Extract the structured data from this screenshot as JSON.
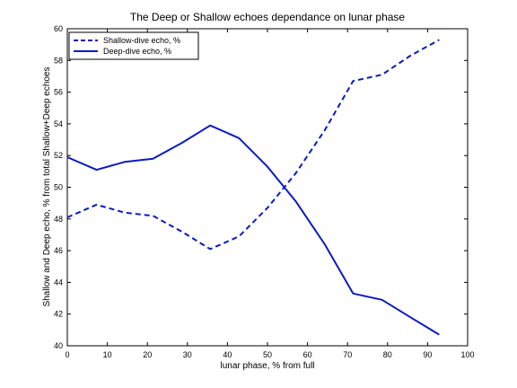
{
  "chart_data": {
    "type": "line",
    "title": "The Deep or Shallow echoes dependance on lunar phase",
    "xlabel": "lunar phase, % from full",
    "ylabel": "Shallow and Deep echo, % from total Shallow+Deep echoes",
    "xlim": [
      0,
      100
    ],
    "ylim": [
      40,
      60
    ],
    "xticks": [
      0,
      10,
      20,
      30,
      40,
      50,
      60,
      70,
      80,
      90,
      100
    ],
    "yticks": [
      40,
      42,
      44,
      46,
      48,
      50,
      52,
      54,
      56,
      58,
      60
    ],
    "grid": false,
    "legend_position": "top-left",
    "series": [
      {
        "name": "Shallow-dive echo, %",
        "line_style": "dashed",
        "color": "#0a1ac6",
        "x": [
          0,
          7.3,
          14.3,
          21.4,
          28.6,
          35.7,
          42.9,
          50,
          57.1,
          64.3,
          71.4,
          78.6,
          85.7,
          92.9
        ],
        "y": [
          48.1,
          48.9,
          48.4,
          48.2,
          47.2,
          46.1,
          46.9,
          48.7,
          50.9,
          53.6,
          56.7,
          57.1,
          58.3,
          59.3
        ]
      },
      {
        "name": "Deep-dive echo, %",
        "line_style": "solid",
        "color": "#0a1ac6",
        "x": [
          0,
          7.3,
          14.3,
          21.4,
          28.6,
          35.7,
          42.9,
          50,
          57.1,
          64.3,
          71.4,
          78.6,
          85.7,
          92.9
        ],
        "y": [
          51.9,
          51.1,
          51.6,
          51.8,
          52.8,
          53.9,
          53.1,
          51.3,
          49.1,
          46.4,
          43.3,
          42.9,
          41.8,
          40.7
        ]
      }
    ]
  }
}
